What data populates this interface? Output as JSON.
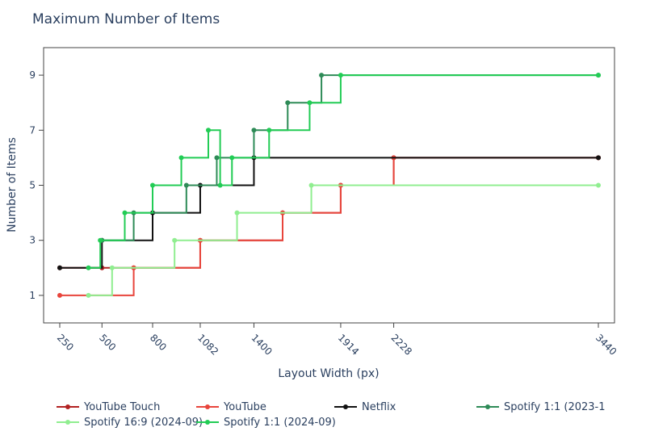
{
  "chart_data": {
    "type": "line",
    "title": "Maximum Number of Items",
    "xlabel": "Layout Width (px)",
    "ylabel": "Number of Items",
    "line_shape": "step",
    "xlim": [
      180,
      3440
    ],
    "ylim": [
      0,
      10
    ],
    "x_ticks": [
      250,
      500,
      800,
      1082,
      1400,
      1914,
      2228,
      3440
    ],
    "y_ticks": [
      1,
      3,
      5,
      7,
      9
    ],
    "grid": false,
    "legend_position": "bottom",
    "series": [
      {
        "name": "YouTube Touch",
        "color": "#b22222",
        "points": [
          [
            250,
            2
          ],
          [
            500,
            2
          ],
          [
            688,
            2
          ],
          [
            1082,
            3
          ],
          [
            1570,
            4
          ],
          [
            1914,
            5
          ],
          [
            2228,
            6
          ],
          [
            3440,
            6
          ]
        ]
      },
      {
        "name": "YouTube",
        "color": "#e8453c",
        "points": [
          [
            250,
            1
          ],
          [
            688,
            2
          ],
          [
            1082,
            3
          ],
          [
            1570,
            4
          ],
          [
            1914,
            5
          ],
          [
            2228,
            6
          ],
          [
            3440,
            6
          ]
        ]
      },
      {
        "name": "Netflix",
        "color": "#111111",
        "points": [
          [
            250,
            2
          ],
          [
            500,
            3
          ],
          [
            800,
            4
          ],
          [
            1082,
            5
          ],
          [
            1400,
            6
          ],
          [
            3440,
            6
          ]
        ]
      },
      {
        "name": "Spotify 1:1 (2023-1",
        "color": "#2e8b57",
        "points": [
          [
            500,
            3
          ],
          [
            688,
            4
          ],
          [
            1000,
            5
          ],
          [
            1180,
            6
          ],
          [
            1400,
            7
          ],
          [
            1600,
            8
          ],
          [
            1800,
            9
          ],
          [
            3440,
            9
          ]
        ]
      },
      {
        "name": "Spotify 16:9 (2024-09)",
        "color": "#90ee90",
        "points": [
          [
            420,
            1
          ],
          [
            560,
            2
          ],
          [
            930,
            3
          ],
          [
            1300,
            4
          ],
          [
            1740,
            5
          ],
          [
            3440,
            5
          ]
        ]
      },
      {
        "name": "Spotify 1:1 (2024-09)",
        "color": "#22cc55",
        "points": [
          [
            420,
            2
          ],
          [
            490,
            3
          ],
          [
            635,
            4
          ],
          [
            800,
            5
          ],
          [
            970,
            6
          ],
          [
            1130,
            7
          ],
          [
            1200,
            5
          ],
          [
            1270,
            6
          ],
          [
            1490,
            7
          ],
          [
            1730,
            8
          ],
          [
            1914,
            9
          ],
          [
            3440,
            9
          ]
        ]
      }
    ]
  }
}
